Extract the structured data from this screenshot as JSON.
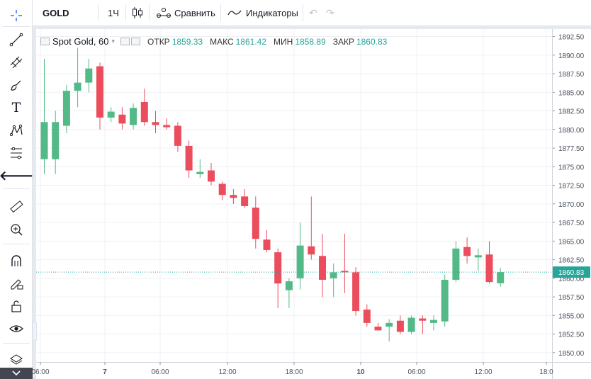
{
  "toolbar": {
    "symbol": "GOLD",
    "interval": "1Ч",
    "compare_label": "Сравнить",
    "indicators_label": "Индикаторы"
  },
  "legend": {
    "title": "Spot Gold, 60",
    "open_label": "ОТКР",
    "open": "1859.33",
    "high_label": "МАКС",
    "high": "1861.42",
    "low_label": "МИН",
    "low": "1858.89",
    "close_label": "ЗАКР",
    "close": "1860.83"
  },
  "colors": {
    "up": "#26a69a",
    "down": "#ef5350",
    "up_candle": "#53b987",
    "down_candle": "#eb4d5c"
  },
  "sidebar_icons": [
    "crosshair-icon",
    "trend-line-icon",
    "fib-icon",
    "brush-icon",
    "text-icon",
    "pattern-icon",
    "measure-pattern-icon",
    "back-arrow-icon",
    "ruler-icon",
    "zoom-in-icon",
    "magnet-icon",
    "lock-drawing-icon",
    "lock-icon",
    "eye-icon",
    "layers-icon",
    "chevron-down-icon"
  ],
  "chart_data": {
    "type": "candlestick",
    "title": "Spot Gold, 60",
    "ylim": [
      1848.75,
      1893.5
    ],
    "y_ticks": [
      "1892.50",
      "1890.00",
      "1887.50",
      "1885.00",
      "1882.50",
      "1880.00",
      "1877.50",
      "1875.00",
      "1872.50",
      "1870.00",
      "1867.50",
      "1865.00",
      "1862.50",
      "1860.00",
      "1857.50",
      "1855.00",
      "1852.50",
      "1850.00"
    ],
    "x_ticks": [
      "06:00",
      "7",
      "06:00",
      "12:00",
      "18:00",
      "10",
      "06:00",
      "12:00",
      "18:0"
    ],
    "last_price_label": "1860.83",
    "candles": [
      {
        "o": 1876.0,
        "h": 1889.5,
        "l": 1874.0,
        "c": 1881.0
      },
      {
        "o": 1876.0,
        "h": 1882.5,
        "l": 1874.0,
        "c": 1881.0
      },
      {
        "o": 1880.5,
        "h": 1886.0,
        "l": 1879.5,
        "c": 1885.2
      },
      {
        "o": 1885.2,
        "h": 1891.0,
        "l": 1883.0,
        "c": 1886.3
      },
      {
        "o": 1886.3,
        "h": 1889.5,
        "l": 1885.0,
        "c": 1888.2
      },
      {
        "o": 1888.5,
        "h": 1889.0,
        "l": 1880.0,
        "c": 1881.6
      },
      {
        "o": 1881.6,
        "h": 1883.0,
        "l": 1881.0,
        "c": 1882.4
      },
      {
        "o": 1882.0,
        "h": 1883.0,
        "l": 1880.0,
        "c": 1880.8
      },
      {
        "o": 1880.6,
        "h": 1883.5,
        "l": 1880.0,
        "c": 1882.9
      },
      {
        "o": 1883.7,
        "h": 1885.5,
        "l": 1880.5,
        "c": 1881.0
      },
      {
        "o": 1881.0,
        "h": 1882.5,
        "l": 1879.5,
        "c": 1880.6
      },
      {
        "o": 1880.6,
        "h": 1881.5,
        "l": 1880.0,
        "c": 1880.3
      },
      {
        "o": 1880.5,
        "h": 1881.0,
        "l": 1877.0,
        "c": 1877.8
      },
      {
        "o": 1877.8,
        "h": 1878.5,
        "l": 1873.5,
        "c": 1874.5
      },
      {
        "o": 1874.0,
        "h": 1876.0,
        "l": 1873.5,
        "c": 1874.3
      },
      {
        "o": 1874.5,
        "h": 1875.5,
        "l": 1872.5,
        "c": 1873.0
      },
      {
        "o": 1872.7,
        "h": 1873.0,
        "l": 1870.5,
        "c": 1871.2
      },
      {
        "o": 1871.2,
        "h": 1872.0,
        "l": 1870.0,
        "c": 1870.8
      },
      {
        "o": 1871.0,
        "h": 1872.0,
        "l": 1869.5,
        "c": 1869.7
      },
      {
        "o": 1869.5,
        "h": 1871.0,
        "l": 1864.0,
        "c": 1865.3
      },
      {
        "o": 1865.2,
        "h": 1866.5,
        "l": 1863.5,
        "c": 1863.8
      },
      {
        "o": 1863.5,
        "h": 1864.0,
        "l": 1856.0,
        "c": 1859.3
      },
      {
        "o": 1858.4,
        "h": 1860.0,
        "l": 1856.0,
        "c": 1859.6
      },
      {
        "o": 1860.0,
        "h": 1867.5,
        "l": 1858.5,
        "c": 1864.4
      },
      {
        "o": 1864.3,
        "h": 1871.0,
        "l": 1862.5,
        "c": 1863.2
      },
      {
        "o": 1863.0,
        "h": 1866.0,
        "l": 1857.5,
        "c": 1859.8
      },
      {
        "o": 1860.0,
        "h": 1862.0,
        "l": 1857.5,
        "c": 1860.8
      },
      {
        "o": 1861.0,
        "h": 1866.0,
        "l": 1858.0,
        "c": 1860.8
      },
      {
        "o": 1860.8,
        "h": 1861.5,
        "l": 1855.0,
        "c": 1855.6
      },
      {
        "o": 1855.8,
        "h": 1856.5,
        "l": 1853.5,
        "c": 1854.0
      },
      {
        "o": 1853.5,
        "h": 1854.0,
        "l": 1853.0,
        "c": 1853.0
      },
      {
        "o": 1853.5,
        "h": 1854.5,
        "l": 1851.5,
        "c": 1854.0
      },
      {
        "o": 1854.3,
        "h": 1855.0,
        "l": 1852.5,
        "c": 1852.8
      },
      {
        "o": 1852.8,
        "h": 1855.0,
        "l": 1852.5,
        "c": 1854.7
      },
      {
        "o": 1854.6,
        "h": 1855.0,
        "l": 1852.5,
        "c": 1854.3
      },
      {
        "o": 1854.0,
        "h": 1855.0,
        "l": 1853.0,
        "c": 1854.4
      },
      {
        "o": 1854.2,
        "h": 1860.5,
        "l": 1853.5,
        "c": 1859.8
      },
      {
        "o": 1859.8,
        "h": 1865.0,
        "l": 1859.5,
        "c": 1864.0
      },
      {
        "o": 1864.2,
        "h": 1865.5,
        "l": 1862.0,
        "c": 1863.0
      },
      {
        "o": 1862.8,
        "h": 1864.0,
        "l": 1861.0,
        "c": 1863.1
      },
      {
        "o": 1863.2,
        "h": 1865.0,
        "l": 1859.3,
        "c": 1859.5
      },
      {
        "o": 1859.33,
        "h": 1861.42,
        "l": 1858.89,
        "c": 1860.83
      }
    ]
  }
}
